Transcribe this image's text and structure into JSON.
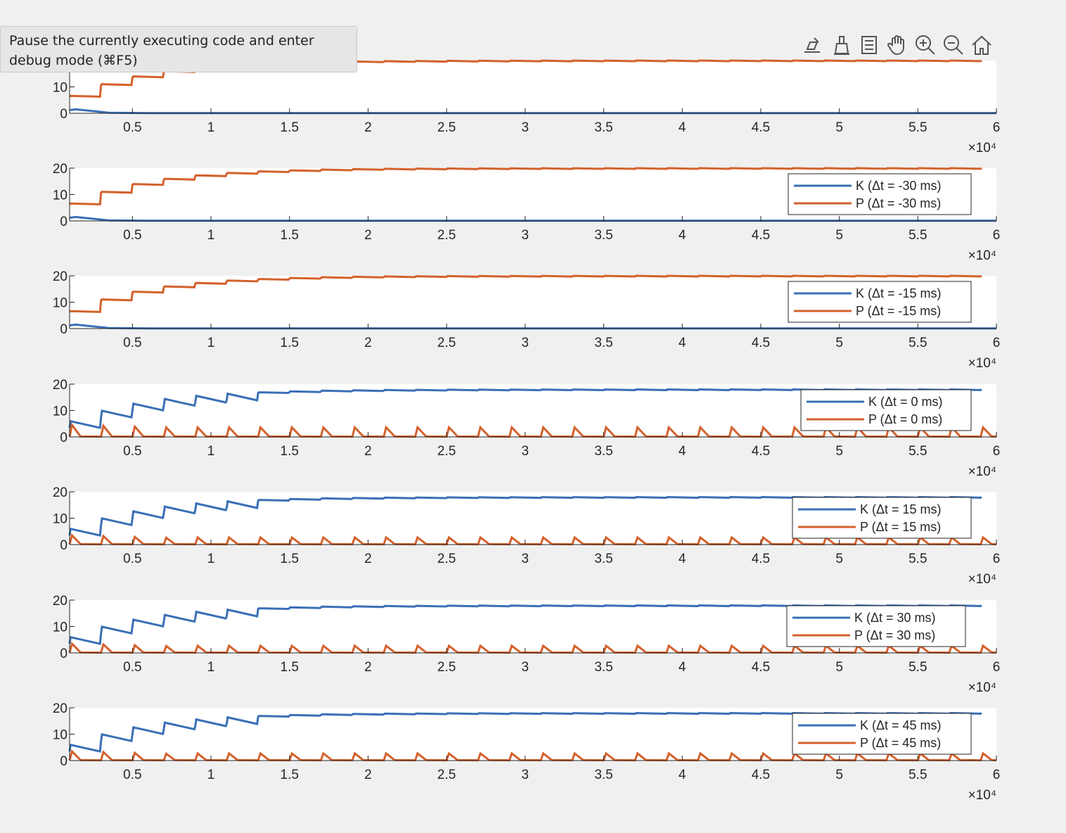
{
  "tooltip": {
    "text": "Pause the currently executing code and enter debug mode (⌘F5)"
  },
  "toolbar": {
    "icons": [
      "export-icon",
      "brush-icon",
      "data-tips-icon",
      "pan-icon",
      "zoom-in-icon",
      "zoom-out-icon",
      "home-icon"
    ]
  },
  "colors": {
    "K": "#3a6fb6",
    "P": "#d4612c",
    "plot_bg": "#ffffff",
    "figure_bg": "#f0f0f0"
  },
  "chart_data": [
    {
      "type": "line",
      "xlim": [
        1000,
        60000
      ],
      "ylim": [
        0,
        20
      ],
      "yticks": [
        0,
        10,
        20
      ],
      "xticks": [
        0.5,
        1,
        1.5,
        2,
        2.5,
        3,
        3.5,
        4,
        4.5,
        5,
        5.5,
        6
      ],
      "xexponent": "×10⁴",
      "legend": null,
      "series": [
        {
          "key": "K",
          "plateau": 0,
          "pattern": "decay"
        },
        {
          "key": "P",
          "plateau": 20,
          "pattern": "rise"
        }
      ]
    },
    {
      "type": "line",
      "xlim": [
        1000,
        60000
      ],
      "ylim": [
        0,
        20
      ],
      "yticks": [
        0,
        10,
        20
      ],
      "xticks": [
        0.5,
        1,
        1.5,
        2,
        2.5,
        3,
        3.5,
        4,
        4.5,
        5,
        5.5,
        6
      ],
      "xexponent": "×10⁴",
      "legend": {
        "placement": "top-right",
        "entries": [
          {
            "key": "K",
            "label": "K (Δt = -30 ms)"
          },
          {
            "key": "P",
            "label": "P (Δt = -30 ms)"
          }
        ]
      },
      "series": [
        {
          "key": "K",
          "plateau": 0,
          "pattern": "decay"
        },
        {
          "key": "P",
          "plateau": 20,
          "pattern": "rise"
        }
      ]
    },
    {
      "type": "line",
      "xlim": [
        1000,
        60000
      ],
      "ylim": [
        0,
        20
      ],
      "yticks": [
        0,
        10,
        20
      ],
      "xticks": [
        0.5,
        1,
        1.5,
        2,
        2.5,
        3,
        3.5,
        4,
        4.5,
        5,
        5.5,
        6
      ],
      "xexponent": "×10⁴",
      "legend": {
        "placement": "top-right",
        "entries": [
          {
            "key": "K",
            "label": "K (Δt = -15 ms)"
          },
          {
            "key": "P",
            "label": "P (Δt = -15 ms)"
          }
        ]
      },
      "series": [
        {
          "key": "K",
          "plateau": 0,
          "pattern": "decay"
        },
        {
          "key": "P",
          "plateau": 20,
          "pattern": "rise"
        }
      ]
    },
    {
      "type": "line",
      "xlim": [
        1000,
        60000
      ],
      "ylim": [
        0,
        20
      ],
      "yticks": [
        0,
        10,
        20
      ],
      "xticks": [
        0.5,
        1,
        1.5,
        2,
        2.5,
        3,
        3.5,
        4,
        4.5,
        5,
        5.5,
        6
      ],
      "xexponent": "×10⁴",
      "legend": {
        "placement": "top-right",
        "entries": [
          {
            "key": "K",
            "label": "K (Δt = 0 ms)"
          },
          {
            "key": "P",
            "label": "P (Δt = 0 ms)"
          }
        ]
      },
      "series": [
        {
          "key": "K",
          "plateau": 18,
          "pattern": "rise"
        },
        {
          "key": "P",
          "plateau": 4,
          "pattern": "spikes"
        }
      ]
    },
    {
      "type": "line",
      "xlim": [
        1000,
        60000
      ],
      "ylim": [
        0,
        20
      ],
      "yticks": [
        0,
        10,
        20
      ],
      "xticks": [
        0.5,
        1,
        1.5,
        2,
        2.5,
        3,
        3.5,
        4,
        4.5,
        5,
        5.5,
        6
      ],
      "xexponent": "×10⁴",
      "legend": {
        "placement": "top-right",
        "entries": [
          {
            "key": "K",
            "label": "K (Δt = 15 ms)"
          },
          {
            "key": "P",
            "label": "P (Δt = 15 ms)"
          }
        ]
      },
      "series": [
        {
          "key": "K",
          "plateau": 18,
          "pattern": "rise"
        },
        {
          "key": "P",
          "plateau": 3,
          "pattern": "spikes"
        }
      ]
    },
    {
      "type": "line",
      "xlim": [
        1000,
        60000
      ],
      "ylim": [
        0,
        20
      ],
      "yticks": [
        0,
        10,
        20
      ],
      "xticks": [
        0.5,
        1,
        1.5,
        2,
        2.5,
        3,
        3.5,
        4,
        4.5,
        5,
        5.5,
        6
      ],
      "xexponent": "×10⁴",
      "legend": {
        "placement": "top-right",
        "entries": [
          {
            "key": "K",
            "label": "K (Δt = 30 ms)"
          },
          {
            "key": "P",
            "label": "P (Δt = 30 ms)"
          }
        ]
      },
      "series": [
        {
          "key": "K",
          "plateau": 18,
          "pattern": "rise"
        },
        {
          "key": "P",
          "plateau": 3,
          "pattern": "spikes"
        }
      ]
    },
    {
      "type": "line",
      "xlim": [
        1000,
        60000
      ],
      "ylim": [
        0,
        20
      ],
      "yticks": [
        0,
        10,
        20
      ],
      "xticks": [
        0.5,
        1,
        1.5,
        2,
        2.5,
        3,
        3.5,
        4,
        4.5,
        5,
        5.5,
        6
      ],
      "xexponent": "×10⁴",
      "legend": {
        "placement": "top-right",
        "entries": [
          {
            "key": "K",
            "label": "K (Δt = 45 ms)"
          },
          {
            "key": "P",
            "label": "P (Δt = 45 ms)"
          }
        ]
      },
      "series": [
        {
          "key": "K",
          "plateau": 18,
          "pattern": "rise"
        },
        {
          "key": "P",
          "plateau": 3,
          "pattern": "spikes"
        }
      ]
    }
  ]
}
